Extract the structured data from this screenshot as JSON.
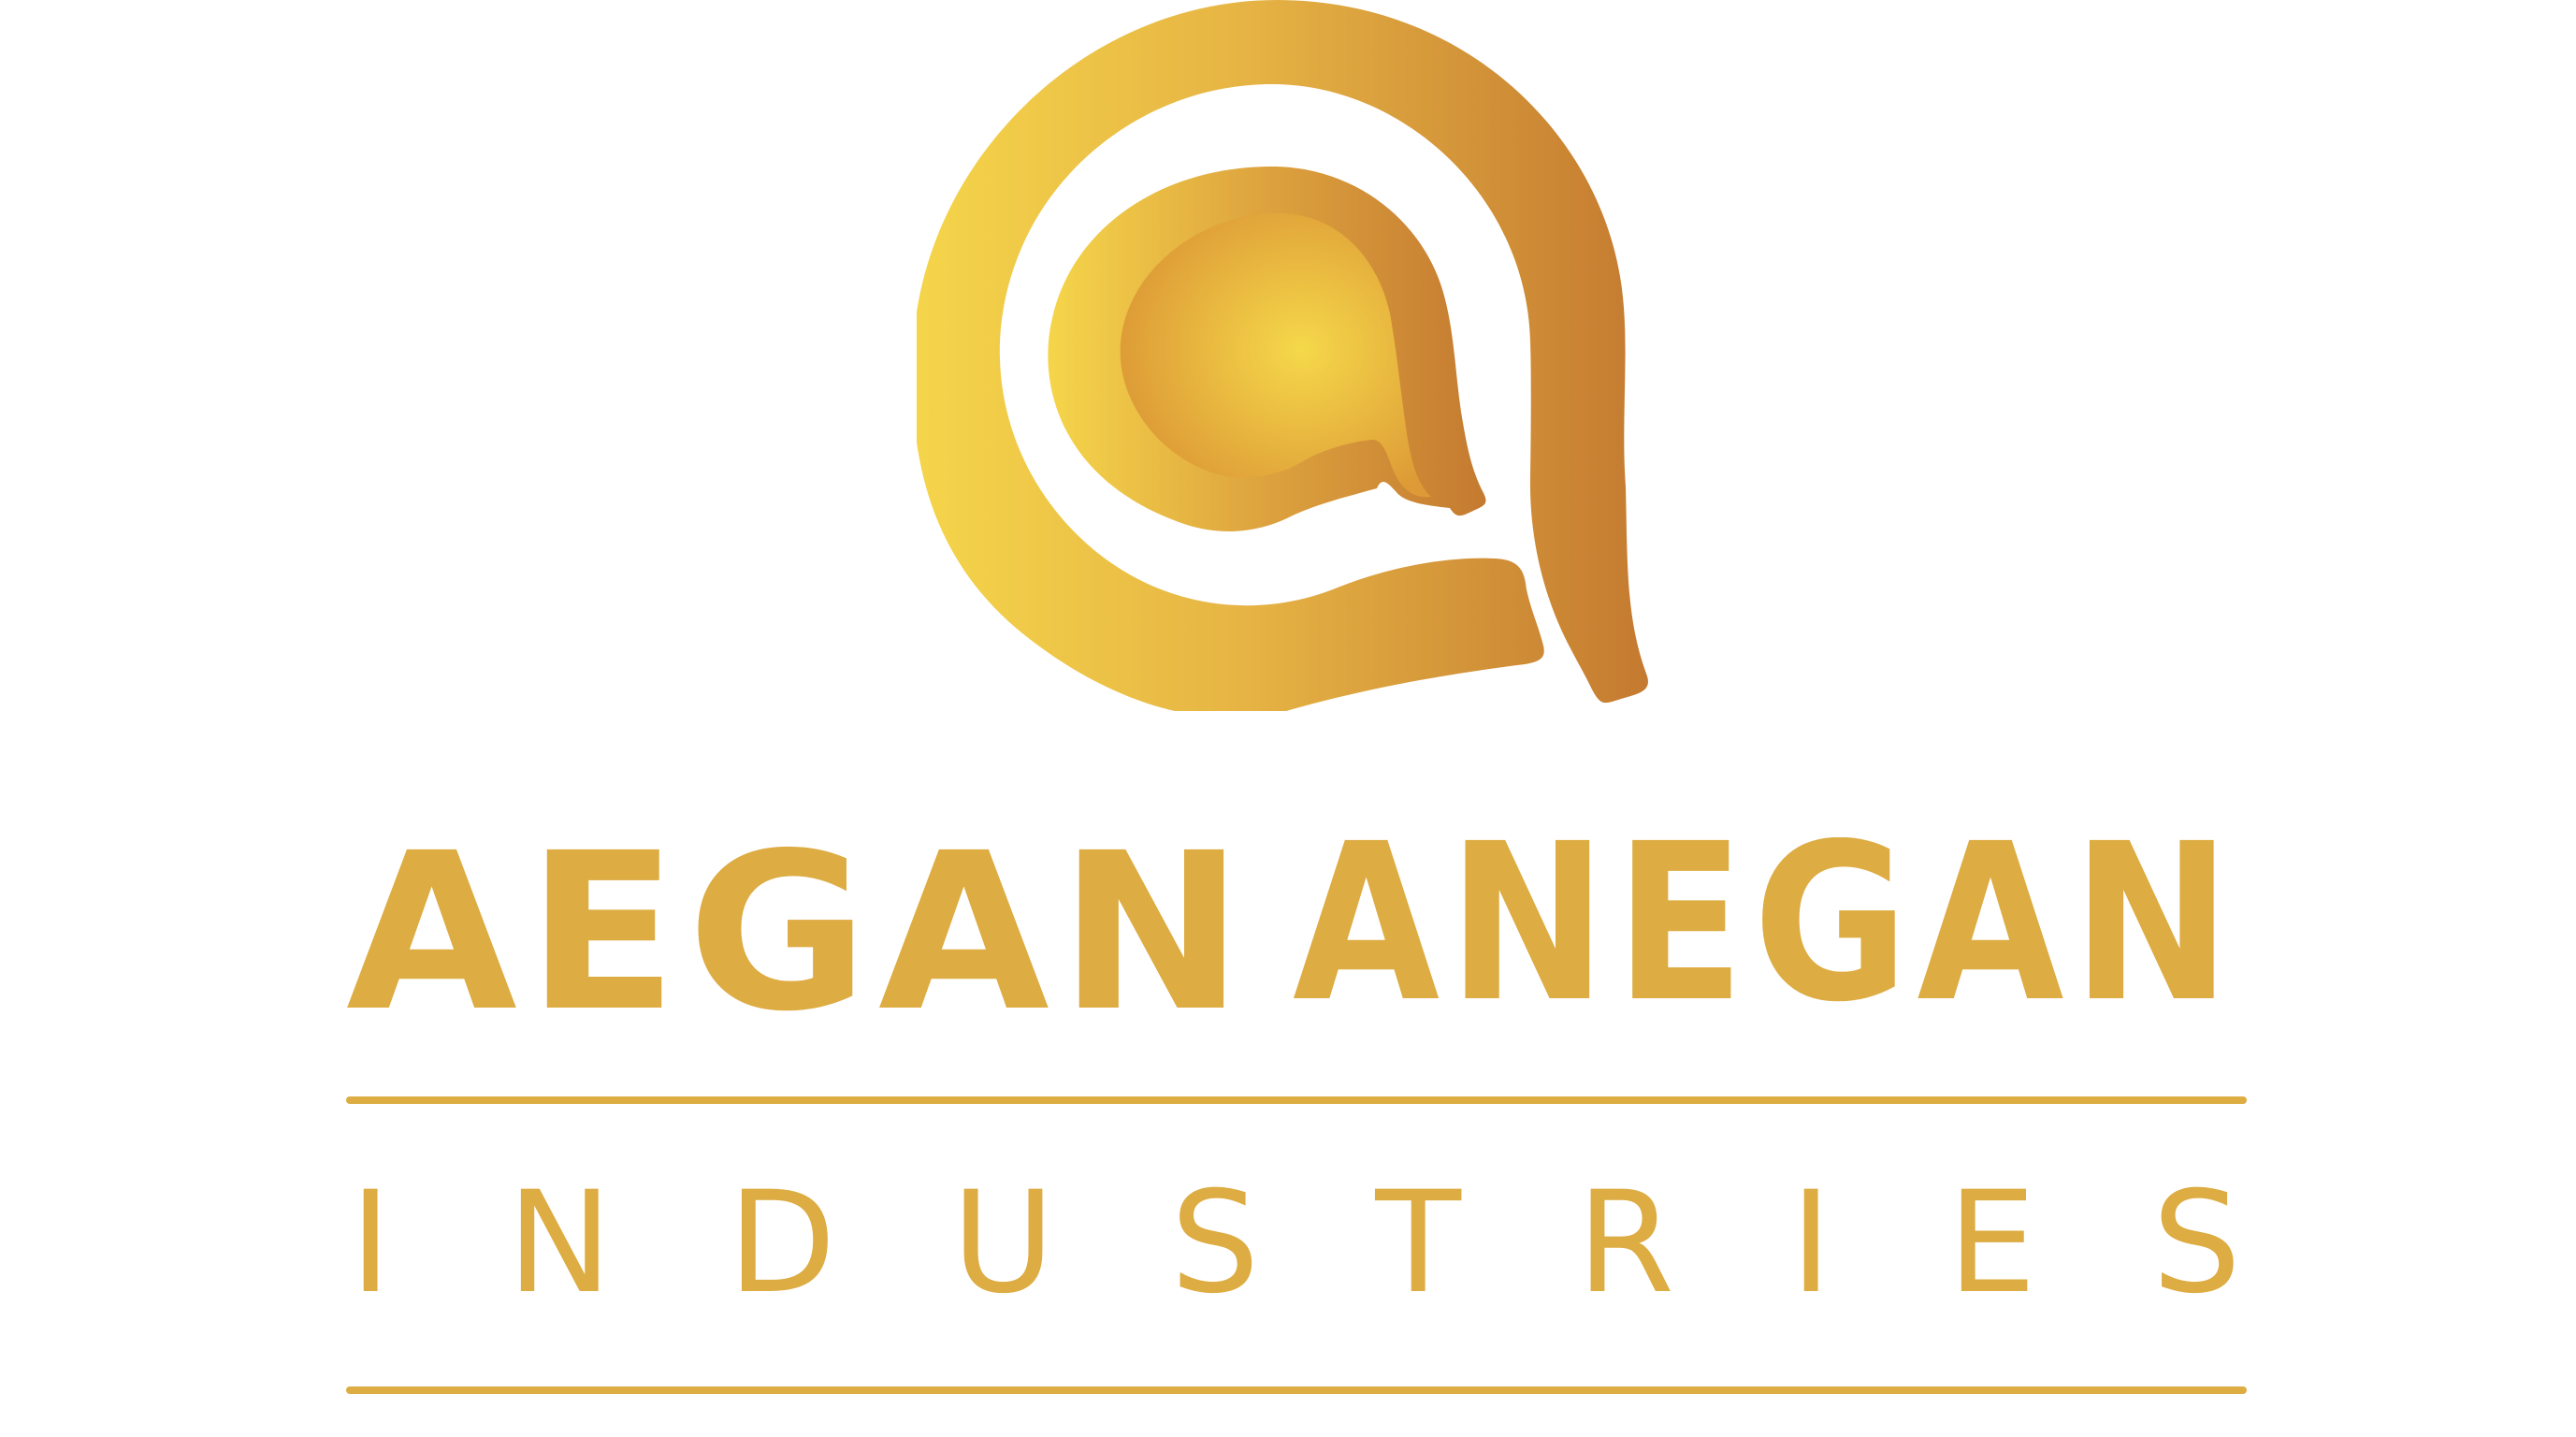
{
  "brand": {
    "name_line1": "AEGAN",
    "name_line2": "ANEGAN",
    "subtitle": "INDUSTRIES",
    "subtitle_letters": [
      "I",
      "N",
      "D",
      "U",
      "S",
      "T",
      "R",
      "I",
      "E",
      "S"
    ]
  },
  "colors": {
    "text_gold": "#DDAC42",
    "gradient_light": "#F5D54A",
    "gradient_dark": "#C47A30"
  },
  "icons": {
    "logo_mark": "spiral-a-monogram-icon"
  }
}
